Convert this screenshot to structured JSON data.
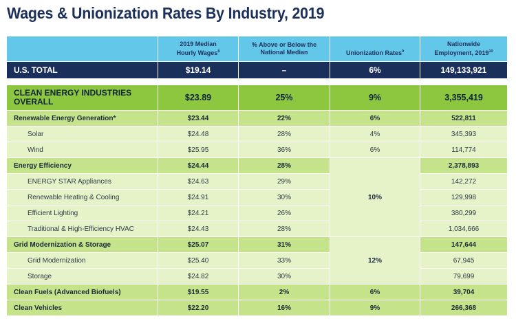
{
  "title": "Wages & Unionization Rates By Industry, 2019",
  "header": {
    "col1": "",
    "col2_line1": "2019 Median",
    "col2_line2": "Hourly Wages",
    "col2_sup": "8",
    "col3_line1": "% Above or Below the",
    "col3_line2": "National Median",
    "col4": "Unionization Rates",
    "col4_sup": "9",
    "col5_line1": "Nationwide",
    "col5_line2": "Employment, 2019",
    "col5_sup": "10"
  },
  "us_total": {
    "label": "U.S. TOTAL",
    "wage": "$19.14",
    "pct": "–",
    "union": "6%",
    "employment": "149,133,921"
  },
  "clean_energy": {
    "label_line1": "CLEAN ENERGY INDUSTRIES",
    "label_line2": "OVERALL",
    "wage": "$23.89",
    "pct": "25%",
    "union": "9%",
    "employment": "3,355,419"
  },
  "rows": [
    {
      "label": "Renewable Energy Generation*",
      "wage": "$23.44",
      "pct": "22%",
      "union": "6%",
      "employment": "522,811",
      "level": 1
    },
    {
      "label": "Solar",
      "wage": "$24.48",
      "pct": "28%",
      "union": "4%",
      "employment": "345,393",
      "level": 2
    },
    {
      "label": "Wind",
      "wage": "$25.95",
      "pct": "36%",
      "union": "6%",
      "employment": "114,774",
      "level": 2
    },
    {
      "label": "Energy Efficiency",
      "wage": "$24.44",
      "pct": "28%",
      "union": "",
      "employment": "2,378,893",
      "level": 1
    },
    {
      "label": "ENERGY STAR Appliances",
      "wage": "$24.63",
      "pct": "29%",
      "union": "",
      "employment": "142,272",
      "level": 2
    },
    {
      "label": "Renewable Heating & Cooling",
      "wage": "$24.91",
      "pct": "30%",
      "union": "",
      "employment": "129,998",
      "level": 2
    },
    {
      "label": "Efficient Lighting",
      "wage": "$24.21",
      "pct": "26%",
      "union": "",
      "employment": "380,299",
      "level": 2
    },
    {
      "label": "Traditional & High-Efficiency HVAC",
      "wage": "$24.43",
      "pct": "28%",
      "union": "",
      "employment": "1,034,666",
      "level": 2
    },
    {
      "label": "Grid Modernization & Storage",
      "wage": "$25.07",
      "pct": "31%",
      "union": "",
      "employment": "147,644",
      "level": 1
    },
    {
      "label": "Grid Modernization",
      "wage": "$25.40",
      "pct": "33%",
      "union": "",
      "employment": "67,945",
      "level": 2
    },
    {
      "label": "Storage",
      "wage": "$24.82",
      "pct": "30%",
      "union": "",
      "employment": "79,699",
      "level": 2
    },
    {
      "label": "Clean Fuels (Advanced Biofuels)",
      "wage": "$19.55",
      "pct": "2%",
      "union": "6%",
      "employment": "39,704",
      "level": 1
    },
    {
      "label": "Clean Vehicles",
      "wage": "$22.20",
      "pct": "16%",
      "union": "9%",
      "employment": "266,368",
      "level": 1
    }
  ],
  "merged_union": {
    "energy_efficiency": "10%",
    "grid_modernization": "12%"
  }
}
